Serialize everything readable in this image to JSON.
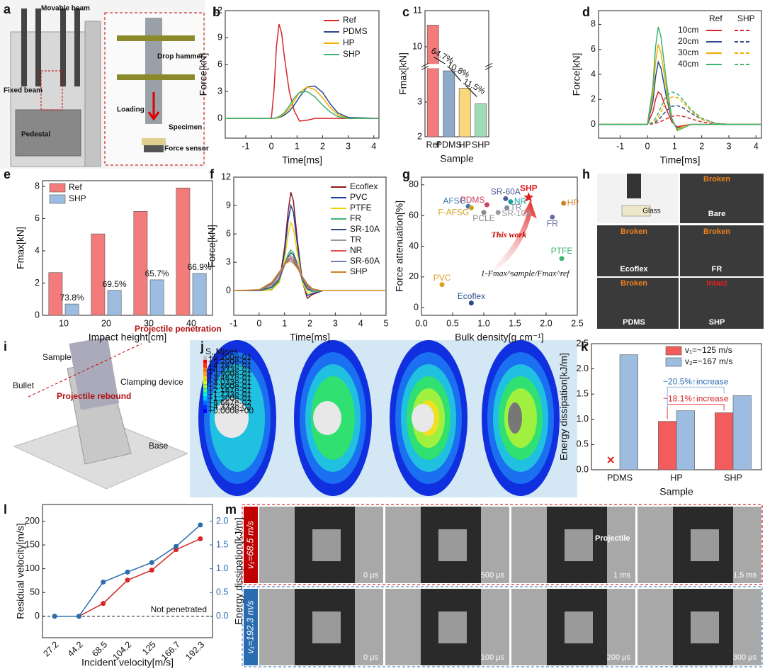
{
  "chart_data": [
    {
      "type": "line",
      "ylabel": "Force[kN]",
      "xlabel": "Time[ms]",
      "xlim": [
        -1.8,
        4.2
      ],
      "xticks": [
        -1,
        0,
        1,
        2,
        3,
        4
      ],
      "ylim": [
        -2.2,
        12
      ],
      "yticks": [
        0,
        3,
        6,
        9,
        12
      ],
      "x": [
        -1.8,
        0,
        0.1,
        0.2,
        0.3,
        0.4,
        0.5,
        0.7,
        0.9,
        1.1,
        1.4,
        1.7,
        2.0,
        2.3,
        2.6,
        3,
        4.2
      ],
      "series": [
        {
          "name": "Ref",
          "color": "#d62728",
          "values": [
            0,
            0,
            3,
            8,
            10.5,
            9.5,
            7,
            3,
            0.8,
            -0.3,
            -0.2,
            0,
            0,
            0,
            0,
            0,
            0
          ]
        },
        {
          "name": "PDMS",
          "color": "#2b4c8c",
          "values": [
            0,
            0,
            0,
            0.05,
            0.1,
            0.2,
            0.35,
            0.8,
            1.5,
            2.4,
            3.5,
            3.6,
            2.9,
            1.6,
            0.6,
            0.1,
            0
          ]
        },
        {
          "name": "HP",
          "color": "#f0b000",
          "values": [
            0,
            0,
            0,
            0.05,
            0.15,
            0.3,
            0.5,
            1.1,
            2.0,
            2.9,
            3.5,
            3.2,
            2.3,
            1.2,
            0.4,
            0,
            0
          ]
        },
        {
          "name": "SHP",
          "color": "#3cb371",
          "values": [
            0,
            0,
            0,
            0.1,
            0.2,
            0.4,
            0.6,
            1.4,
            2.3,
            2.9,
            3.0,
            2.4,
            1.5,
            0.7,
            0.2,
            0,
            0
          ]
        }
      ]
    },
    {
      "type": "bar",
      "ylabel": "Fmax[kN]",
      "xlabel": "Sample",
      "ylim": [
        2,
        11
      ],
      "ybreak": [
        4,
        9.5
      ],
      "yticks": [
        2,
        3,
        10,
        11
      ],
      "categories": [
        "Ref",
        "PDMS",
        "HP",
        "SHP"
      ],
      "values": [
        10.6,
        3.9,
        3.4,
        2.95
      ],
      "colors": [
        "#f47b7b",
        "#8fa9c8",
        "#f9d77a",
        "#9ddcb5"
      ],
      "annotations": [
        "64.7%",
        "10.8%",
        "11.5%"
      ]
    },
    {
      "type": "line",
      "ylabel": "Force[kN]",
      "xlabel": "Time[ms]",
      "xlim": [
        -1.8,
        4.2
      ],
      "xticks": [
        -1,
        0,
        1,
        2,
        3,
        4
      ],
      "ylim": [
        -1.1,
        9.1
      ],
      "yticks": [
        0,
        2,
        4,
        6,
        8
      ],
      "line_styles": [
        "Ref",
        "SHP"
      ],
      "x": [
        -1.8,
        0,
        0.2,
        0.3,
        0.4,
        0.5,
        0.7,
        0.9,
        1.1,
        1.3,
        1.6,
        2.0,
        2.5,
        3,
        4.2
      ],
      "series": [
        {
          "name": "10cm",
          "color": "#d62728",
          "ref_values": [
            0,
            0,
            1,
            2,
            2.6,
            2.4,
            1.2,
            0.2,
            -0.2,
            -0.1,
            0,
            0,
            0,
            0,
            0
          ],
          "shp_values": [
            0,
            0,
            0.05,
            0.1,
            0.15,
            0.25,
            0.45,
            0.65,
            0.7,
            0.65,
            0.45,
            0.2,
            0.05,
            0,
            0
          ]
        },
        {
          "name": "20cm",
          "color": "#2b4c8c",
          "ref_values": [
            0,
            0,
            1.8,
            3.8,
            5.0,
            4.5,
            2.2,
            0.3,
            -0.3,
            -0.2,
            0,
            0,
            0,
            0,
            0
          ],
          "shp_values": [
            0,
            0,
            0.1,
            0.2,
            0.35,
            0.6,
            1.1,
            1.45,
            1.5,
            1.35,
            0.9,
            0.4,
            0.1,
            0,
            0
          ]
        },
        {
          "name": "30cm",
          "color": "#f0b000",
          "ref_values": [
            0,
            0,
            2.4,
            5,
            6.4,
            5.7,
            2.8,
            0.4,
            -0.4,
            -0.2,
            0,
            0,
            0,
            0,
            0
          ],
          "shp_values": [
            0,
            0,
            0.15,
            0.3,
            0.6,
            1.0,
            1.8,
            2.2,
            2.15,
            1.8,
            1.1,
            0.4,
            0.1,
            0,
            0
          ]
        },
        {
          "name": "40cm",
          "color": "#3cb371",
          "ref_values": [
            0,
            0,
            3,
            6.2,
            7.8,
            7,
            3.4,
            0.5,
            -0.5,
            -0.3,
            0,
            0,
            0,
            0,
            0
          ],
          "shp_values": [
            0,
            0,
            0.2,
            0.5,
            0.9,
            1.4,
            2.3,
            2.6,
            2.45,
            2.0,
            1.2,
            0.5,
            0.1,
            0,
            0
          ]
        }
      ]
    },
    {
      "type": "bar",
      "ylabel": "Fmax[kN]",
      "xlabel": "Impact height[cm]",
      "ylim": [
        0,
        8.35
      ],
      "yticks": [
        0,
        2,
        4,
        6,
        8
      ],
      "categories": [
        "10",
        "20",
        "30",
        "40"
      ],
      "series": [
        {
          "name": "Ref",
          "color": "#f47b7b",
          "values": [
            2.65,
            5.05,
            6.45,
            7.9
          ]
        },
        {
          "name": "SHP",
          "color": "#9dbde0",
          "values": [
            0.7,
            1.55,
            2.2,
            2.6
          ]
        }
      ],
      "annotations": [
        "73.8%",
        "69.5%",
        "65.7%",
        "66.9%"
      ]
    },
    {
      "type": "line",
      "ylabel": "Force[kN]",
      "xlabel": "Time[ms]",
      "xlim": [
        -1,
        5
      ],
      "xticks": [
        -1,
        0,
        1,
        2,
        3,
        4,
        5
      ],
      "ylim": [
        -2.6,
        12
      ],
      "yticks": [
        0,
        3,
        6,
        9,
        12
      ],
      "x": [
        -1,
        0,
        0.5,
        0.8,
        1.0,
        1.15,
        1.25,
        1.35,
        1.5,
        1.7,
        1.9,
        2.1,
        2.5,
        3,
        5
      ],
      "series": [
        {
          "name": "Ecoflex",
          "color": "#8b1a1a",
          "values": [
            0,
            0,
            0.1,
            1,
            4.5,
            8.5,
            10.4,
            9.5,
            5.5,
            1,
            -0.8,
            -0.4,
            0,
            0,
            0
          ]
        },
        {
          "name": "PVC",
          "color": "#1f3f99",
          "values": [
            0,
            0,
            0.1,
            1,
            4,
            7.5,
            9.0,
            8.3,
            5,
            1,
            -0.5,
            -0.3,
            0,
            0,
            0
          ]
        },
        {
          "name": "PTFE",
          "color": "#f0d000",
          "values": [
            0,
            0,
            0.1,
            0.9,
            3.3,
            6,
            7.2,
            6.6,
            4,
            0.9,
            -0.3,
            -0.1,
            0,
            0,
            0
          ]
        },
        {
          "name": "FR",
          "color": "#3cb371",
          "values": [
            0,
            0,
            0.3,
            1.2,
            2.8,
            3.9,
            4.3,
            4.0,
            2.9,
            1.1,
            0.1,
            -0.1,
            0,
            0,
            0
          ]
        },
        {
          "name": "SR-10A",
          "color": "#2e4a7a",
          "values": [
            0,
            0,
            0.4,
            1.3,
            2.7,
            3.6,
            4.0,
            3.8,
            2.8,
            1.2,
            0.2,
            0,
            0,
            0,
            0
          ]
        },
        {
          "name": "TR",
          "color": "#999999",
          "values": [
            0,
            0.05,
            0.6,
            1.6,
            2.8,
            3.5,
            3.7,
            3.5,
            2.7,
            1.4,
            0.4,
            0,
            0,
            0,
            0
          ]
        },
        {
          "name": "NR",
          "color": "#e05050",
          "values": [
            0,
            0.05,
            0.7,
            1.8,
            2.8,
            3.3,
            3.5,
            3.3,
            2.6,
            1.5,
            0.5,
            0.1,
            0,
            0,
            0
          ]
        },
        {
          "name": "SR-60A",
          "color": "#6a7fb5",
          "values": [
            0,
            0.05,
            0.8,
            1.9,
            2.8,
            3.2,
            3.3,
            3.1,
            2.5,
            1.5,
            0.6,
            0.1,
            0,
            0,
            0
          ]
        },
        {
          "name": "SHP",
          "color": "#d08020",
          "values": [
            0,
            0.1,
            0.9,
            2.0,
            2.8,
            3.05,
            3.1,
            2.9,
            2.4,
            1.5,
            0.7,
            0.2,
            0,
            0,
            0
          ]
        }
      ]
    },
    {
      "type": "scatter",
      "ylabel": "Force attenuation[%]",
      "xlabel": "Bulk density[g cm⁻¹]",
      "xlim": [
        0,
        2.5
      ],
      "xticks": [
        {
          "value": 0,
          "label": "0.0"
        },
        0.5,
        {
          "value": 1,
          "label": "1.0"
        },
        1.5,
        {
          "value": 2,
          "label": "2.0"
        },
        2.5
      ],
      "ylim": [
        -5,
        85
      ],
      "yticks": [
        0,
        20,
        40,
        60,
        80
      ],
      "points": [
        {
          "name": "SHP",
          "x": 1.72,
          "y": 72,
          "color": "#e02020"
        },
        {
          "name": "HP",
          "x": 2.28,
          "y": 68,
          "color": "#d08020"
        },
        {
          "name": "FR",
          "x": 2.1,
          "y": 59,
          "color": "#6a6aa8"
        },
        {
          "name": "PTFE",
          "x": 2.25,
          "y": 32,
          "color": "#3cb371"
        },
        {
          "name": "NR",
          "x": 1.43,
          "y": 69,
          "color": "#20a0a0"
        },
        {
          "name": "SR-60A",
          "x": 1.35,
          "y": 71,
          "color": "#4a5a9a"
        },
        {
          "name": "TR",
          "x": 1.37,
          "y": 65,
          "color": "#7a8aa0"
        },
        {
          "name": "SR-10A",
          "x": 1.23,
          "y": 62,
          "color": "#999999"
        },
        {
          "name": "PDMS",
          "x": 1.05,
          "y": 67,
          "color": "#d04060"
        },
        {
          "name": "PCLE",
          "x": 1.0,
          "y": 62,
          "color": "#888888"
        },
        {
          "name": "AFSG",
          "x": 0.75,
          "y": 66,
          "color": "#3a7ab0"
        },
        {
          "name": "F-AFSG",
          "x": 0.8,
          "y": 65,
          "color": "#d0a020"
        },
        {
          "name": "PVC",
          "x": 0.33,
          "y": 15,
          "color": "#e0a020"
        },
        {
          "name": "Ecoflex",
          "x": 0.8,
          "y": 3,
          "color": "#2b4c8c"
        }
      ],
      "annotations": [
        "This work",
        "1-Fmax^sample/Fmax^ref"
      ]
    },
    {
      "type": "bar",
      "ylabel": "Energy dissipation[kJ/m]",
      "xlabel": "Sample",
      "ylim": [
        0,
        2.5
      ],
      "yticks": [
        {
          "value": 0,
          "label": "0.0"
        },
        0.5,
        {
          "value": 1,
          "label": "1.0"
        },
        1.5,
        {
          "value": 2,
          "label": "2.0"
        },
        2.5
      ],
      "categories": [
        "PDMS",
        "HP",
        "SHP"
      ],
      "series": [
        {
          "name": "v₁=~125 m/s",
          "color": "#f25c5c",
          "values": [
            null,
            0.96,
            1.13
          ]
        },
        {
          "name": "v₂=~167 m/s",
          "color": "#9dbde0",
          "values": [
            2.28,
            1.17,
            1.47
          ]
        }
      ],
      "annotations": [
        "~18.1%↑increase",
        "~20.5%↑increase"
      ]
    },
    {
      "type": "line",
      "ylabel": "Residual velocity[m/s]",
      "y2label": "Energy dissipation[kJ/m]",
      "xlabel": "Incident velocity[m/s]",
      "markers": true,
      "categories": [
        "27.2",
        "44.2",
        "68.5",
        "104.2",
        "125",
        "166.7",
        "192.3"
      ],
      "ylim": [
        -45,
        235
      ],
      "yticks": [
        0,
        50,
        100,
        150,
        200
      ],
      "y2lim": [
        -0.45,
        2.35
      ],
      "y2ticks": [
        {
          "value": 0,
          "label": "0.0"
        },
        0.5,
        {
          "value": 1,
          "label": "1.0"
        },
        1.5,
        {
          "value": 2,
          "label": "2.0"
        }
      ],
      "series": [
        {
          "name": "Residual velocity",
          "color": "#d62728",
          "values": [
            0,
            0,
            27,
            76,
            97,
            140,
            163
          ]
        },
        {
          "name": "Energy dissipation",
          "color": "#2b6cb0",
          "axis": "y2",
          "values": [
            0,
            0,
            0.72,
            0.93,
            1.13,
            1.47,
            1.92
          ]
        }
      ],
      "annotations": [
        "Not penetrated"
      ]
    }
  ],
  "figure": {
    "panel_labels": [
      "a",
      "b",
      "c",
      "d",
      "e",
      "f",
      "g",
      "h",
      "i",
      "j",
      "k",
      "l",
      "m"
    ],
    "a": {
      "labels": [
        "Movable beam",
        "Fixed beam",
        "Pedestal",
        "Drop hammer",
        "Loading",
        "Specimen",
        "Force sensor"
      ]
    },
    "h": {
      "labels": [
        "Broken",
        "Glass",
        "Bare",
        "Broken",
        "Broken",
        "Ecoflex",
        "FR",
        "Broken",
        "Intact",
        "PDMS",
        "SHP"
      ]
    },
    "i": {
      "labels": [
        "Sample",
        "Projectile penetration",
        "Bullet",
        "Clamping device",
        "Projectile rebound",
        "Base"
      ]
    },
    "j": {
      "legend_title": "S, Mises",
      "legend_values": [
        "+5.200e-01",
        "+5.200e-01",
        "+4.767e-01",
        "+4.333e-01",
        "+3.900e-01",
        "+3.467e-01",
        "+3.033e-01",
        "+2.600e-01",
        "+2.167e-01",
        "+1.733e-01",
        "+1.300e-01",
        "+8.667e-02",
        "+4.333e-02",
        "+0.000e+00"
      ]
    },
    "m": {
      "rows": [
        {
          "velocity": "v₁=68.5 m/s",
          "times": [
            "0 μs",
            "500 μs",
            "1 ms",
            "1.5 ms"
          ]
        },
        {
          "velocity": "v₁=192.3 m/s",
          "times": [
            "0 μs",
            "100 μs",
            "200 μs",
            "300 μs"
          ]
        }
      ],
      "projectile": "Projectile"
    }
  }
}
